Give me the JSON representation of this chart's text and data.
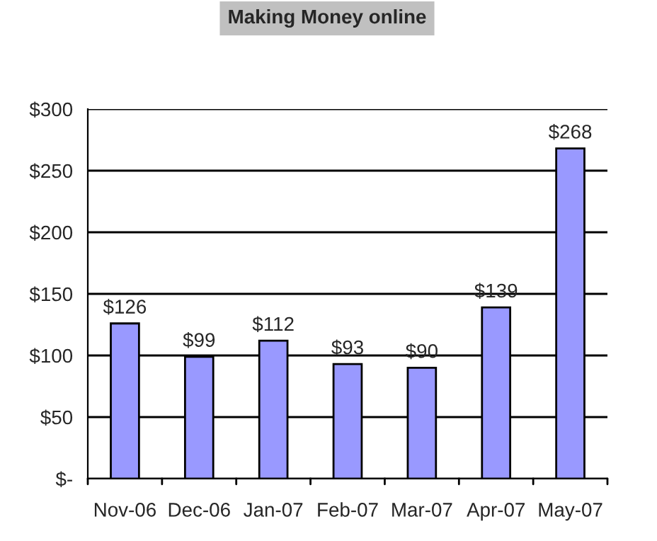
{
  "chart_data": {
    "type": "bar",
    "title": "Making Money online",
    "categories": [
      "Nov-06",
      "Dec-06",
      "Jan-07",
      "Feb-07",
      "Mar-07",
      "Apr-07",
      "May-07"
    ],
    "values": [
      126,
      99,
      112,
      93,
      90,
      139,
      268
    ],
    "value_labels": [
      "$126",
      "$99",
      "$112",
      "$93",
      "$90",
      "$139",
      "$268"
    ],
    "color": "#9999ff",
    "ylim": [
      0,
      300
    ],
    "yticks": [
      {
        "value": 0,
        "label": "$-"
      },
      {
        "value": 50,
        "label": "$50"
      },
      {
        "value": 100,
        "label": "$100"
      },
      {
        "value": 150,
        "label": "$150"
      },
      {
        "value": 200,
        "label": "$200"
      },
      {
        "value": 250,
        "label": "$250"
      },
      {
        "value": 300,
        "label": "$300"
      }
    ],
    "grid": "y"
  }
}
